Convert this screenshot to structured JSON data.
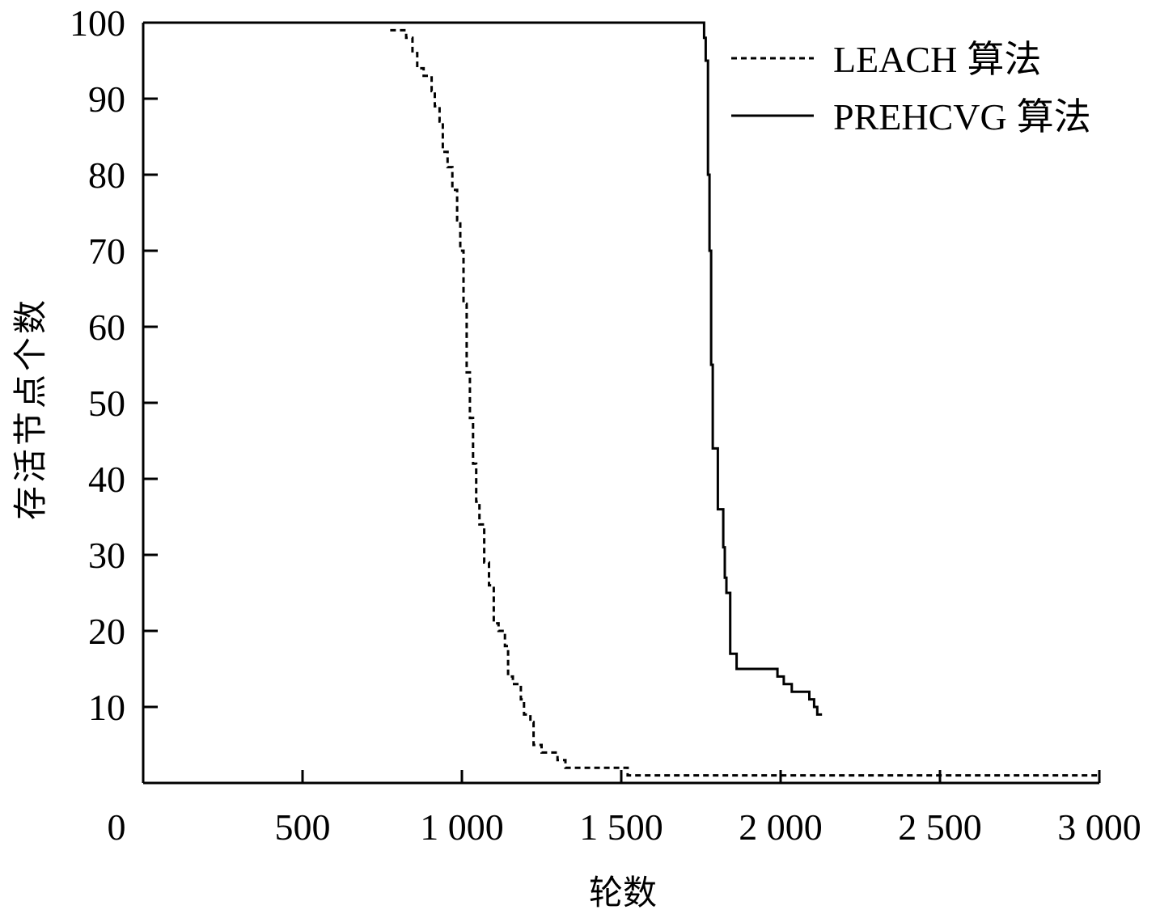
{
  "chart_data": {
    "type": "line",
    "title": "",
    "xlabel": "轮数",
    "ylabel": "存活节点个数",
    "xlim": [
      0,
      3000
    ],
    "ylim": [
      0,
      100
    ],
    "x_ticks": [
      0,
      500,
      1000,
      1500,
      2000,
      2500,
      3000
    ],
    "x_tick_labels": [
      "0",
      "500",
      "1 000",
      "1 500",
      "2 000",
      "2 500",
      "3 000"
    ],
    "y_ticks": [
      10,
      20,
      30,
      40,
      50,
      60,
      70,
      80,
      90,
      100
    ],
    "y_tick_labels": [
      "10",
      "20",
      "30",
      "40",
      "50",
      "60",
      "70",
      "80",
      "90",
      "100"
    ],
    "grid": false,
    "legend_position": "top-right",
    "series": [
      {
        "name": "LEACH 算法",
        "name_latin": "LEACH",
        "name_cjk": "算法",
        "line_style": "dashed",
        "color": "#000000",
        "points": [
          [
            775,
            99
          ],
          [
            815,
            99
          ],
          [
            825,
            98
          ],
          [
            845,
            96
          ],
          [
            860,
            94
          ],
          [
            880,
            93
          ],
          [
            895,
            93
          ],
          [
            905,
            91
          ],
          [
            915,
            89
          ],
          [
            930,
            87
          ],
          [
            940,
            83
          ],
          [
            955,
            81
          ],
          [
            970,
            78
          ],
          [
            985,
            74
          ],
          [
            995,
            70
          ],
          [
            1005,
            63
          ],
          [
            1015,
            54
          ],
          [
            1025,
            48
          ],
          [
            1035,
            42
          ],
          [
            1045,
            37
          ],
          [
            1055,
            34
          ],
          [
            1070,
            29
          ],
          [
            1085,
            26
          ],
          [
            1100,
            21
          ],
          [
            1115,
            20
          ],
          [
            1125,
            20
          ],
          [
            1135,
            18
          ],
          [
            1145,
            14
          ],
          [
            1160,
            13
          ],
          [
            1175,
            13
          ],
          [
            1185,
            11
          ],
          [
            1195,
            9
          ],
          [
            1215,
            8
          ],
          [
            1225,
            5
          ],
          [
            1250,
            4
          ],
          [
            1275,
            4
          ],
          [
            1300,
            3
          ],
          [
            1325,
            2
          ],
          [
            1400,
            2
          ],
          [
            1500,
            2
          ],
          [
            1520,
            1
          ],
          [
            1700,
            1
          ],
          [
            2000,
            1
          ],
          [
            2500,
            1
          ],
          [
            3000,
            1
          ]
        ]
      },
      {
        "name": "PREHCVG 算法",
        "name_latin": "PREHCVG",
        "name_cjk": "算法",
        "line_style": "solid",
        "color": "#000000",
        "points": [
          [
            0,
            100
          ],
          [
            1755,
            100
          ],
          [
            1760,
            98
          ],
          [
            1765,
            95
          ],
          [
            1772,
            80
          ],
          [
            1777,
            70
          ],
          [
            1782,
            55
          ],
          [
            1787,
            44
          ],
          [
            1800,
            44
          ],
          [
            1803,
            36
          ],
          [
            1815,
            36
          ],
          [
            1820,
            31
          ],
          [
            1825,
            27
          ],
          [
            1830,
            25
          ],
          [
            1840,
            25
          ],
          [
            1842,
            17
          ],
          [
            1855,
            17
          ],
          [
            1862,
            15
          ],
          [
            1985,
            15
          ],
          [
            1990,
            14
          ],
          [
            2005,
            14
          ],
          [
            2010,
            13
          ],
          [
            2030,
            13
          ],
          [
            2035,
            12
          ],
          [
            2085,
            12
          ],
          [
            2090,
            11
          ],
          [
            2100,
            11
          ],
          [
            2105,
            10
          ],
          [
            2115,
            9
          ],
          [
            2130,
            9
          ]
        ]
      }
    ]
  }
}
